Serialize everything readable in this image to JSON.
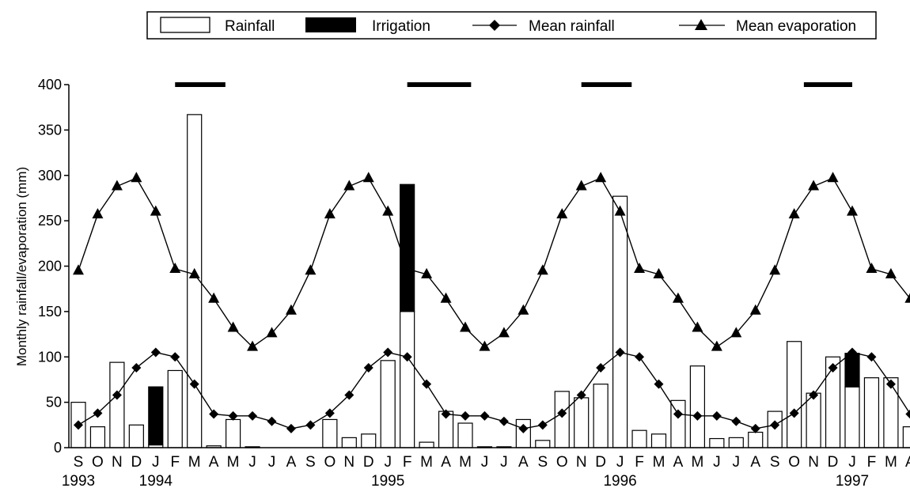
{
  "chart_data": {
    "type": "bar",
    "title": "",
    "xlabel": "",
    "ylabel": "Monthly rainfall/evaporation (mm)",
    "ylim": [
      0,
      400
    ],
    "yticks": [
      0,
      50,
      100,
      150,
      200,
      250,
      300,
      350,
      400
    ],
    "grid": false,
    "legend_position": "top",
    "categories": [
      "S",
      "O",
      "N",
      "D",
      "J",
      "F",
      "M",
      "A",
      "M",
      "J",
      "J",
      "A",
      "S",
      "O",
      "N",
      "D",
      "J",
      "F",
      "M",
      "A",
      "M",
      "J",
      "J",
      "A",
      "S",
      "O",
      "N",
      "D",
      "J",
      "F",
      "M",
      "A",
      "M",
      "J",
      "J",
      "A",
      "S",
      "O",
      "N",
      "D",
      "J",
      "F",
      "M",
      "A"
    ],
    "year_labels": [
      {
        "index": 0,
        "label": "1993"
      },
      {
        "index": 4,
        "label": "1994"
      },
      {
        "index": 16,
        "label": "1995"
      },
      {
        "index": 28,
        "label": "1996"
      },
      {
        "index": 40,
        "label": "1997"
      }
    ],
    "series": [
      {
        "name": "Rainfall",
        "kind": "bar",
        "color": "#ffffff",
        "values": [
          50,
          23,
          94,
          25,
          3,
          85,
          367,
          2,
          31,
          1,
          0,
          0,
          0,
          31,
          11,
          15,
          96,
          150,
          6,
          40,
          27,
          1,
          1,
          31,
          8,
          62,
          55,
          70,
          277,
          19,
          15,
          52,
          90,
          10,
          11,
          17,
          40,
          117,
          60,
          100,
          67,
          77,
          77,
          23
        ]
      },
      {
        "name": "Irrigation",
        "kind": "bar_stacked",
        "color": "#000000",
        "values": [
          0,
          0,
          0,
          0,
          64,
          0,
          0,
          0,
          0,
          0,
          0,
          0,
          0,
          0,
          0,
          0,
          0,
          140,
          0,
          0,
          0,
          0,
          0,
          0,
          0,
          0,
          0,
          0,
          0,
          0,
          0,
          0,
          0,
          0,
          0,
          0,
          0,
          0,
          0,
          0,
          37,
          0,
          0,
          0
        ]
      },
      {
        "name": "Mean rainfall",
        "kind": "line",
        "marker": "diamond",
        "values": [
          25,
          38,
          58,
          88,
          105,
          100,
          70,
          37,
          35,
          35,
          29,
          21,
          25,
          38,
          58,
          88,
          105,
          100,
          70,
          37,
          35,
          35,
          29,
          21,
          25,
          38,
          58,
          88,
          105,
          100,
          70,
          37,
          35,
          35,
          29,
          21,
          25,
          38,
          58,
          88,
          105,
          100,
          70,
          37
        ]
      },
      {
        "name": "Mean evaporation",
        "kind": "line",
        "marker": "triangle",
        "values": [
          195,
          257,
          288,
          297,
          260,
          197,
          191,
          164,
          132,
          111,
          126,
          151,
          195,
          257,
          288,
          297,
          260,
          197,
          191,
          164,
          132,
          111,
          126,
          151,
          195,
          257,
          288,
          297,
          260,
          197,
          191,
          164,
          132,
          111,
          126,
          151,
          195,
          257,
          288,
          297,
          260,
          197,
          191,
          164
        ]
      }
    ],
    "annotations": {
      "horizontal_bars_at_y": 400,
      "spans": [
        {
          "from_index": 5,
          "to_index": 7.6
        },
        {
          "from_index": 17,
          "to_index": 20.3
        },
        {
          "from_index": 26,
          "to_index": 28.6
        },
        {
          "from_index": 37.5,
          "to_index": 40
        }
      ]
    }
  }
}
